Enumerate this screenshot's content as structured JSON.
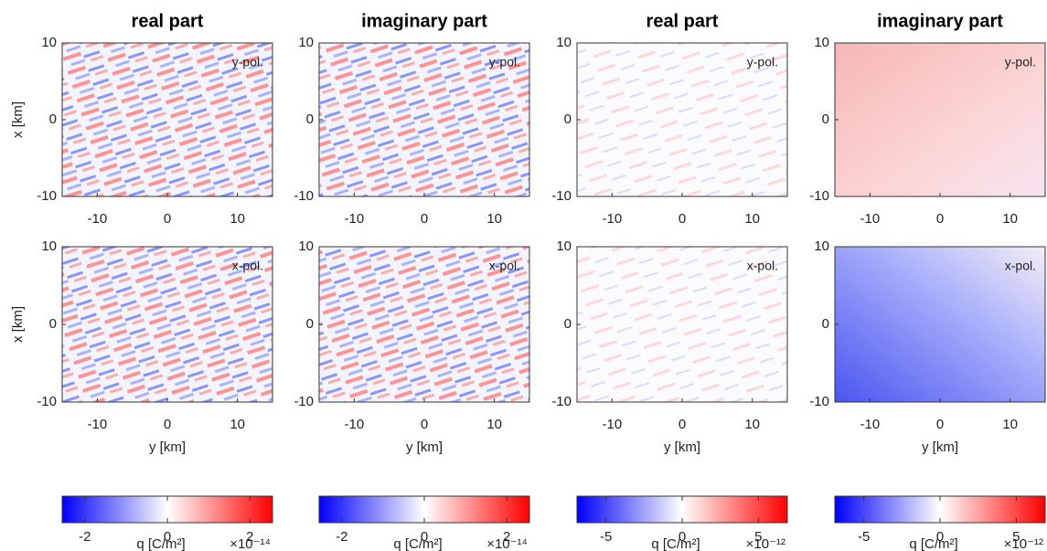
{
  "chart_data": [
    {
      "type": "heatmap",
      "title": "real part",
      "annotation": "y-pol.",
      "ylabel": "x [km]",
      "xlim": [
        -15,
        15
      ],
      "ylim": [
        -10,
        10
      ],
      "xticks": [
        -10,
        0,
        10
      ],
      "yticks": [
        -10,
        0,
        10
      ]
    },
    {
      "type": "heatmap",
      "title": "imaginary part",
      "annotation": "y-pol.",
      "xlim": [
        -15,
        15
      ],
      "ylim": [
        -10,
        10
      ],
      "xticks": [
        -10,
        0,
        10
      ],
      "yticks": [
        -10,
        0,
        10
      ]
    },
    {
      "type": "heatmap",
      "title": "real part",
      "annotation": "y-pol.",
      "xlim": [
        -15,
        15
      ],
      "ylim": [
        -10,
        10
      ],
      "xticks": [
        -10,
        0,
        10
      ],
      "yticks": [
        -10,
        0,
        10
      ]
    },
    {
      "type": "heatmap",
      "title": "imaginary part",
      "annotation": "y-pol.",
      "xlim": [
        -15,
        15
      ],
      "ylim": [
        -10,
        10
      ],
      "xticks": [
        -10,
        0,
        10
      ],
      "yticks": [
        -10,
        0,
        10
      ]
    },
    {
      "type": "heatmap",
      "annotation": "x-pol.",
      "xlabel": "y [km]",
      "ylabel": "x [km]",
      "xlim": [
        -15,
        15
      ],
      "ylim": [
        -10,
        10
      ],
      "xticks": [
        -10,
        0,
        10
      ],
      "yticks": [
        -10,
        0,
        10
      ]
    },
    {
      "type": "heatmap",
      "annotation": "x-pol.",
      "xlabel": "y [km]",
      "xlim": [
        -15,
        15
      ],
      "ylim": [
        -10,
        10
      ],
      "xticks": [
        -10,
        0,
        10
      ],
      "yticks": [
        -10,
        0,
        10
      ]
    },
    {
      "type": "heatmap",
      "annotation": "x-pol.",
      "xlabel": "y [km]",
      "xlim": [
        -15,
        15
      ],
      "ylim": [
        -10,
        10
      ],
      "xticks": [
        -10,
        0,
        10
      ],
      "yticks": [
        -10,
        0,
        10
      ]
    },
    {
      "type": "heatmap",
      "annotation": "x-pol.",
      "xlabel": "y [km]",
      "xlim": [
        -15,
        15
      ],
      "ylim": [
        -10,
        10
      ],
      "xticks": [
        -10,
        0,
        10
      ],
      "yticks": [
        -10,
        0,
        10
      ]
    },
    {
      "type": "colorbar",
      "xlabel": "q [C/m²]",
      "multiplier": "×10⁻¹⁴",
      "xlim": [
        -2.55,
        2.55
      ],
      "xticks": [
        -2,
        0,
        2
      ],
      "colors": [
        "#0000ff",
        "#ffffff",
        "#ff0000"
      ]
    },
    {
      "type": "colorbar",
      "xlabel": "q [C/m²]",
      "multiplier": "×10⁻¹⁴",
      "xlim": [
        -2.55,
        2.55
      ],
      "xticks": [
        -2,
        0,
        2
      ],
      "colors": [
        "#0000ff",
        "#ffffff",
        "#ff0000"
      ]
    },
    {
      "type": "colorbar",
      "xlabel": "q [C/m²]",
      "multiplier": "×10⁻¹²",
      "xlim": [
        -6.9,
        6.9
      ],
      "xticks": [
        -5,
        0,
        5
      ],
      "colors": [
        "#0000ff",
        "#ffffff",
        "#ff0000"
      ]
    },
    {
      "type": "colorbar",
      "xlabel": "q [C/m²]",
      "multiplier": "×10⁻¹²",
      "xlim": [
        -6.9,
        6.9
      ],
      "xticks": [
        -5,
        0,
        5
      ],
      "colors": [
        "#0000ff",
        "#ffffff",
        "#ff0000"
      ]
    }
  ]
}
